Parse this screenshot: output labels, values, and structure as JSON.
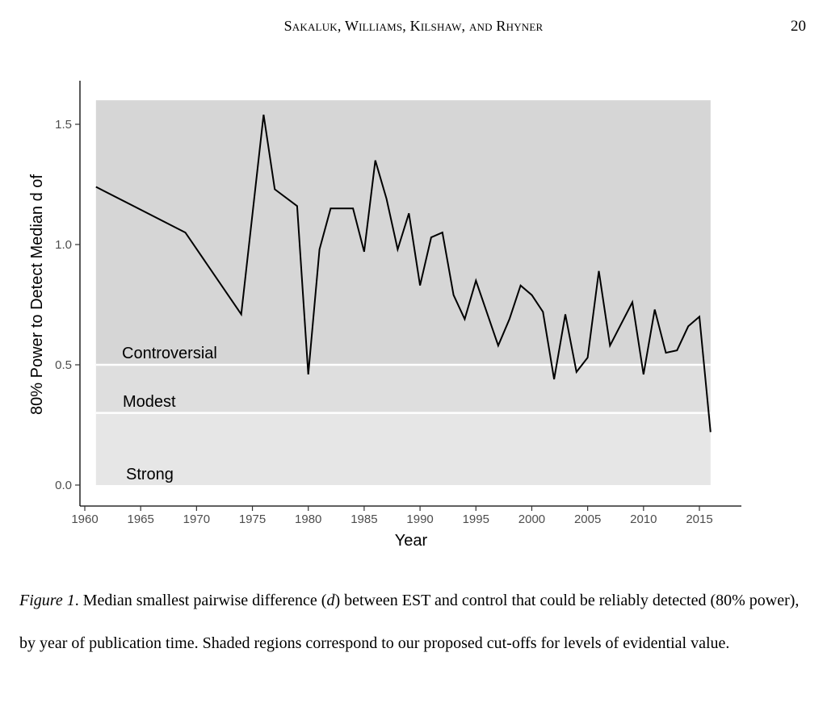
{
  "header": {
    "running_head": "Sakaluk, Williams, Kilshaw, and Rhyner",
    "page_number": "20"
  },
  "caption": {
    "label": "Figure 1",
    "text_1": ". Median smallest pairwise difference (",
    "d": "d",
    "text_2": ") between EST and control that could be reliably detected (80% power), by year of publication time. Shaded regions correspond to our proposed cut-offs for levels of evidential value."
  },
  "chart_data": {
    "type": "line",
    "title": "",
    "xlabel": "Year",
    "ylabel": "80% Power to Detect Median d of",
    "xlim": [
      1959.5,
      2018.5
    ],
    "ylim": [
      -0.07,
      1.68
    ],
    "x_ticks": [
      1960,
      1965,
      1970,
      1975,
      1980,
      1985,
      1990,
      1995,
      2000,
      2005,
      2010,
      2015
    ],
    "y_ticks": [
      0.0,
      0.5,
      1.0,
      1.5
    ],
    "y_tick_labels": [
      "0.0",
      "0.5",
      "1.0",
      "1.5"
    ],
    "grid": false,
    "regions": [
      {
        "label": "Strong",
        "from": 0.0,
        "to": 0.3,
        "color": "#e6e6e6"
      },
      {
        "label": "Modest",
        "from": 0.3,
        "to": 0.5,
        "color": "#dedede"
      },
      {
        "label": "Controversial",
        "from": 0.5,
        "to": 1.6,
        "color": "#d6d6d6"
      }
    ],
    "region_x_range": [
      1961,
      2016
    ],
    "series": [
      {
        "name": "median d",
        "color": "#000000",
        "x": [
          1961,
          1969,
          1974,
          1976,
          1977,
          1979,
          1980,
          1981,
          1982,
          1984,
          1985,
          1986,
          1987,
          1988,
          1989,
          1990,
          1991,
          1992,
          1993,
          1994,
          1995,
          1997,
          1998,
          1999,
          2000,
          2001,
          2002,
          2003,
          2004,
          2005,
          2006,
          2007,
          2009,
          2010,
          2011,
          2012,
          2013,
          2014,
          2015,
          2016
        ],
        "y": [
          1.24,
          1.05,
          0.71,
          1.54,
          1.23,
          1.16,
          0.46,
          0.98,
          1.15,
          1.15,
          0.97,
          1.35,
          1.19,
          0.98,
          1.13,
          0.83,
          1.03,
          1.05,
          0.79,
          0.69,
          0.85,
          0.58,
          0.69,
          0.83,
          0.79,
          0.72,
          0.44,
          0.71,
          0.47,
          0.53,
          0.89,
          0.58,
          0.76,
          0.46,
          0.73,
          0.55,
          0.56,
          0.66,
          0.7,
          0.22
        ]
      }
    ]
  }
}
